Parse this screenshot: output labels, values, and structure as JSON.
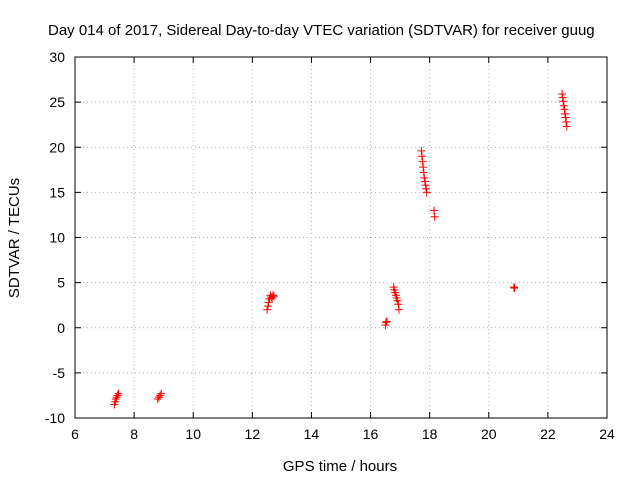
{
  "chart_data": {
    "type": "scatter",
    "title": "Day 014 of 2017, Sidereal Day-to-day VTEC variation (SDTVAR) for receiver guug",
    "xlabel": "GPS time / hours",
    "ylabel": "SDTVAR / TECUs",
    "xlim": [
      6,
      24
    ],
    "ylim": [
      -10,
      30
    ],
    "xticks": [
      6,
      8,
      10,
      12,
      14,
      16,
      18,
      20,
      22,
      24
    ],
    "yticks": [
      -10,
      -5,
      0,
      5,
      10,
      15,
      20,
      25,
      30
    ],
    "xtick_labels": [
      "6",
      "8",
      "10",
      "12",
      "14",
      "16",
      "18",
      "20",
      "22",
      "24"
    ],
    "ytick_labels": [
      "-10",
      "-5",
      "0",
      "5",
      "10",
      "15",
      "20",
      "25",
      "30"
    ],
    "grid": true,
    "marker": "+",
    "marker_color": "#ff0000",
    "series": [
      {
        "name": "SDTVAR",
        "points": [
          [
            7.33,
            -8.5
          ],
          [
            7.36,
            -8.2
          ],
          [
            7.38,
            -7.9
          ],
          [
            7.41,
            -7.7
          ],
          [
            7.44,
            -7.5
          ],
          [
            7.47,
            -7.3
          ],
          [
            8.8,
            -7.9
          ],
          [
            8.84,
            -7.7
          ],
          [
            8.88,
            -7.5
          ],
          [
            8.92,
            -7.3
          ],
          [
            12.5,
            2.0
          ],
          [
            12.53,
            2.4
          ],
          [
            12.55,
            2.8
          ],
          [
            12.58,
            3.2
          ],
          [
            12.61,
            3.6
          ],
          [
            12.64,
            3.4
          ],
          [
            12.67,
            3.3
          ],
          [
            12.7,
            3.6
          ],
          [
            12.73,
            3.5
          ],
          [
            16.5,
            0.3
          ],
          [
            16.52,
            0.6
          ],
          [
            16.55,
            0.7
          ],
          [
            16.78,
            4.5
          ],
          [
            16.8,
            4.2
          ],
          [
            16.83,
            3.9
          ],
          [
            16.86,
            3.6
          ],
          [
            16.88,
            3.3
          ],
          [
            16.91,
            3.0
          ],
          [
            16.94,
            2.6
          ],
          [
            16.96,
            2.0
          ],
          [
            17.72,
            19.6
          ],
          [
            17.74,
            19.0
          ],
          [
            17.76,
            18.4
          ],
          [
            17.78,
            17.8
          ],
          [
            17.8,
            17.2
          ],
          [
            17.82,
            16.6
          ],
          [
            17.84,
            16.2
          ],
          [
            17.86,
            15.8
          ],
          [
            17.88,
            15.4
          ],
          [
            17.9,
            15.0
          ],
          [
            18.15,
            13.0
          ],
          [
            18.17,
            12.3
          ],
          [
            20.85,
            4.5
          ],
          [
            20.87,
            4.4
          ],
          [
            22.48,
            25.9
          ],
          [
            22.5,
            25.5
          ],
          [
            22.52,
            25.1
          ],
          [
            22.54,
            24.6
          ],
          [
            22.56,
            24.2
          ],
          [
            22.58,
            23.7
          ],
          [
            22.6,
            23.3
          ],
          [
            22.62,
            22.8
          ],
          [
            22.64,
            22.3
          ]
        ]
      }
    ]
  }
}
